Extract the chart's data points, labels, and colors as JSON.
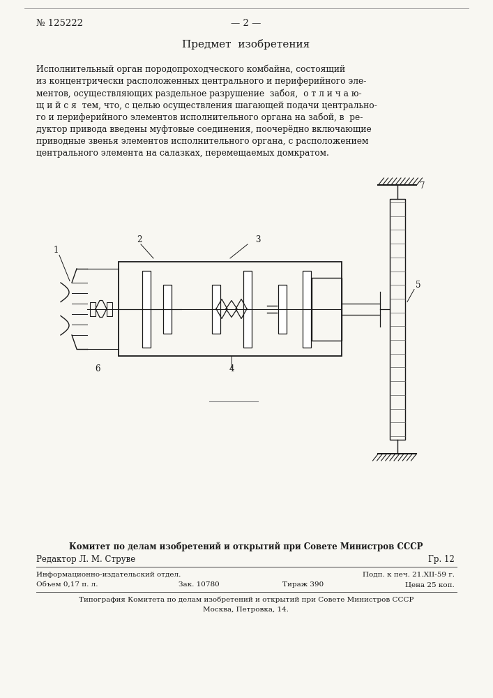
{
  "bg_color": "#f8f7f2",
  "patent_number": "№ 125222",
  "page_number": "— 2 —",
  "section_title": "Предмет  изобретения",
  "body_text": [
    "Исполнительный орган породопроходческого комбайна, состоящий",
    "из концентрически расположенных центрального и периферийного эле-",
    "ментов, осуществляющих раздельное разрушение  забоя,  о т л и ч а ю-",
    "щ и й с я  тем, что, с целью осуществления шагающей подачи центрально-",
    "го и периферийного элементов исполнительного органа на забой, в  ре-",
    "дуктор привода введены муфтовые соединения, поочерёдно включающие",
    "приводные звенья элементов исполнительного органа, с расположением",
    "центрального элемента на салазках, перемещаемых домкратом."
  ],
  "footer_bold": "Комитет по делам изобретений и открытий при Совете Министров СССР",
  "footer_editor": "Редактор Л. М. Струве",
  "footer_gr": "Гр. 12",
  "footer_line1_left": "Информационно-издательский отдел.",
  "footer_line1_right": "Подп. к печ. 21.XII-59 г.",
  "footer_line2_left": "Объем 0,17 п. л.",
  "footer_line2_mid": "Зак. 10780",
  "footer_line2_mid2": "Тираж 390",
  "footer_line2_right": "Цена 25 коп.",
  "footer_tip1": "Типография Комитета по делам изобретений и открытий при Совете Министров СССР",
  "footer_tip2": "Москва, Петровка, 14."
}
